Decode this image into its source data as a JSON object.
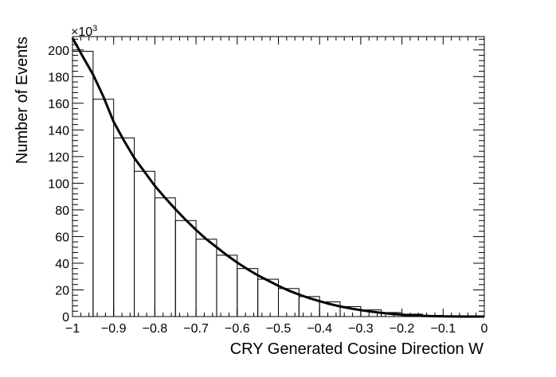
{
  "chart_data": {
    "type": "histogram",
    "title": "",
    "xlabel": "CRY Generated Cosine Direction W",
    "ylabel": "Number of Events",
    "y_multiplier": "×10",
    "y_multiplier_exp": "3",
    "xlim": [
      -1,
      0
    ],
    "ylim": [
      0,
      210
    ],
    "grid": false,
    "legend": "none",
    "x_ticks": [
      {
        "value": -1,
        "label": "−1"
      },
      {
        "value": -0.9,
        "label": "−0.9"
      },
      {
        "value": -0.8,
        "label": "−0.8"
      },
      {
        "value": -0.7,
        "label": "−0.7"
      },
      {
        "value": -0.6,
        "label": "−0.6"
      },
      {
        "value": -0.5,
        "label": "−0.5"
      },
      {
        "value": -0.4,
        "label": "−0.4"
      },
      {
        "value": -0.3,
        "label": "−0.3"
      },
      {
        "value": -0.2,
        "label": "−0.2"
      },
      {
        "value": -0.1,
        "label": "−0.1"
      },
      {
        "value": 0,
        "label": "0"
      }
    ],
    "y_ticks": [
      {
        "value": 0,
        "label": "0"
      },
      {
        "value": 20,
        "label": "20"
      },
      {
        "value": 40,
        "label": "40"
      },
      {
        "value": 60,
        "label": "60"
      },
      {
        "value": 80,
        "label": "80"
      },
      {
        "value": 100,
        "label": "100"
      },
      {
        "value": 120,
        "label": "120"
      },
      {
        "value": 140,
        "label": "140"
      },
      {
        "value": 160,
        "label": "160"
      },
      {
        "value": 180,
        "label": "180"
      },
      {
        "value": 200,
        "label": "200"
      }
    ],
    "bins": {
      "edges": [
        -1,
        -0.95,
        -0.9,
        -0.85,
        -0.8,
        -0.75,
        -0.7,
        -0.65,
        -0.6,
        -0.55,
        -0.5,
        -0.45,
        -0.4,
        -0.35,
        -0.3,
        -0.25,
        -0.2,
        -0.15,
        -0.1,
        -0.05,
        0
      ],
      "values": [
        199,
        163,
        134,
        109,
        89,
        72,
        58,
        46,
        36,
        28,
        21,
        15,
        11,
        7.5,
        5,
        3,
        1.8,
        0.9,
        0.4,
        0.1
      ]
    },
    "fit_curve": {
      "x": [
        -1,
        -0.975,
        -0.95,
        -0.925,
        -0.9,
        -0.875,
        -0.85,
        -0.825,
        -0.8,
        -0.775,
        -0.75,
        -0.725,
        -0.7,
        -0.675,
        -0.65,
        -0.625,
        -0.6,
        -0.575,
        -0.55,
        -0.525,
        -0.5,
        -0.475,
        -0.45,
        -0.425,
        -0.4,
        -0.375,
        -0.35,
        -0.325,
        -0.3,
        -0.275,
        -0.25,
        -0.225,
        -0.2,
        -0.175,
        -0.15,
        -0.125,
        -0.1,
        -0.075,
        -0.05,
        -0.025,
        0
      ],
      "y": [
        209,
        195,
        181.5,
        165,
        146,
        132,
        119,
        108.5,
        98,
        89,
        80.5,
        72.5,
        65,
        58,
        52,
        46,
        40.5,
        35.5,
        31,
        27,
        23,
        19.5,
        16.5,
        13.8,
        11.5,
        9.4,
        7.6,
        6.1,
        4.8,
        3.7,
        2.8,
        2,
        1.4,
        0.9,
        0.55,
        0.3,
        0.15,
        0.06,
        0.02,
        0,
        0
      ]
    }
  }
}
